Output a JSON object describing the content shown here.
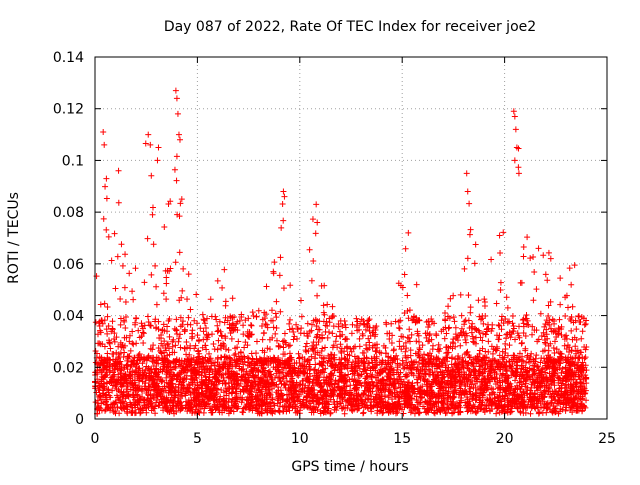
{
  "chart_data": {
    "type": "scatter",
    "title": "Day 087 of 2022, Rate Of TEC Index for receiver joe2",
    "xlabel": "GPS time / hours",
    "ylabel": "ROTI / TECUs",
    "xlim": [
      0,
      25
    ],
    "ylim": [
      0,
      0.14
    ],
    "x_ticks": [
      0,
      5,
      10,
      15,
      20,
      25
    ],
    "y_ticks": [
      0,
      0.02,
      0.04,
      0.06,
      0.08,
      0.1,
      0.12,
      0.14
    ],
    "x_tick_labels": [
      "0",
      "5",
      "10",
      "15",
      "20",
      "25"
    ],
    "y_tick_labels": [
      "0",
      "0.02",
      "0.04",
      "0.06",
      "0.08",
      "0.1",
      "0.12",
      "0.14"
    ],
    "grid": true,
    "marker": "+",
    "color": "#ff0000",
    "data_range_x": [
      0,
      24
    ],
    "envelope": [
      [
        0.0,
        0.05
      ],
      [
        0.3,
        0.07
      ],
      [
        0.5,
        0.09
      ],
      [
        0.8,
        0.085
      ],
      [
        1.2,
        0.08
      ],
      [
        1.6,
        0.06
      ],
      [
        2.0,
        0.06
      ],
      [
        2.5,
        0.11
      ],
      [
        3.0,
        0.09
      ],
      [
        3.5,
        0.07
      ],
      [
        4.0,
        0.125
      ],
      [
        4.4,
        0.06
      ],
      [
        5.0,
        0.045
      ],
      [
        5.5,
        0.04
      ],
      [
        6.2,
        0.06
      ],
      [
        7.0,
        0.04
      ],
      [
        8.0,
        0.04
      ],
      [
        8.5,
        0.05
      ],
      [
        9.2,
        0.087
      ],
      [
        9.8,
        0.04
      ],
      [
        10.8,
        0.08
      ],
      [
        11.5,
        0.04
      ],
      [
        12.5,
        0.035
      ],
      [
        13.5,
        0.035
      ],
      [
        14.5,
        0.035
      ],
      [
        15.3,
        0.072
      ],
      [
        16.0,
        0.035
      ],
      [
        17.0,
        0.035
      ],
      [
        17.8,
        0.055
      ],
      [
        18.2,
        0.09
      ],
      [
        18.8,
        0.06
      ],
      [
        19.5,
        0.065
      ],
      [
        20.0,
        0.07
      ],
      [
        20.5,
        0.118
      ],
      [
        21.0,
        0.08
      ],
      [
        21.5,
        0.07
      ],
      [
        22.0,
        0.065
      ],
      [
        22.5,
        0.06
      ],
      [
        23.0,
        0.06
      ],
      [
        23.5,
        0.055
      ],
      [
        24.0,
        0.035
      ]
    ],
    "baseline_level": 0.012,
    "outliers": [
      [
        0.4,
        0.111
      ],
      [
        0.45,
        0.106
      ],
      [
        1.15,
        0.096
      ],
      [
        2.6,
        0.11
      ],
      [
        2.7,
        0.106
      ],
      [
        3.05,
        0.1
      ],
      [
        3.1,
        0.105
      ],
      [
        3.95,
        0.127
      ],
      [
        4.0,
        0.124
      ],
      [
        4.05,
        0.118
      ],
      [
        4.1,
        0.11
      ],
      [
        4.15,
        0.108
      ],
      [
        9.2,
        0.088
      ],
      [
        9.25,
        0.086
      ],
      [
        10.8,
        0.083
      ],
      [
        10.85,
        0.076
      ],
      [
        15.3,
        0.072
      ],
      [
        18.15,
        0.095
      ],
      [
        18.2,
        0.088
      ],
      [
        20.45,
        0.119
      ],
      [
        20.5,
        0.117
      ],
      [
        20.55,
        0.112
      ],
      [
        20.6,
        0.105
      ],
      [
        20.5,
        0.1
      ],
      [
        20.7,
        0.095
      ]
    ]
  }
}
